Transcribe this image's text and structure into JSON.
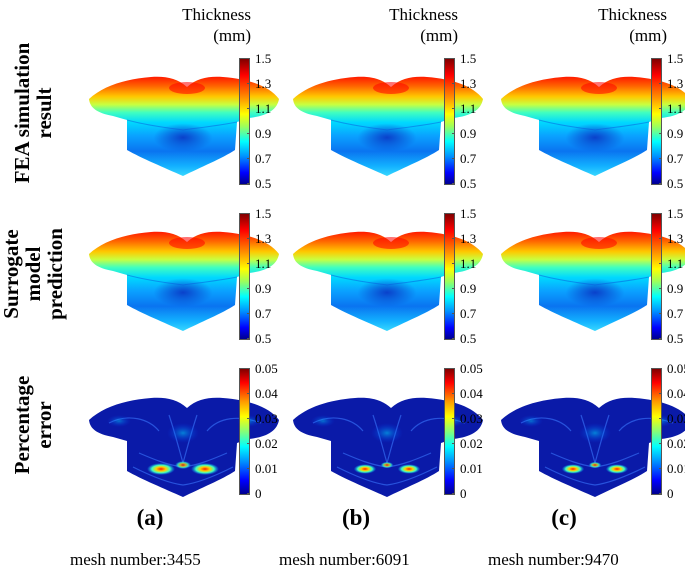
{
  "figure": {
    "unit_title_line1": "Thickness",
    "unit_title_line2": "(mm)",
    "row_labels": [
      {
        "line1": "FEA simulation",
        "line2": "result",
        "line3": ""
      },
      {
        "line1": "Surrogate",
        "line2": "model",
        "line3": "prediction"
      },
      {
        "line1": "Percentage",
        "line2": "error",
        "line3": ""
      }
    ],
    "thickness_colorbar": {
      "min": 0.5,
      "max": 1.5,
      "ticks": [
        "1.5",
        "1.3",
        "1.1",
        "0.9",
        "0.7",
        "0.5"
      ]
    },
    "error_colorbar": {
      "min": 0,
      "max": 0.05,
      "ticks": [
        "0.05",
        "0.04",
        "0.03",
        "0.02",
        "0.01",
        "0"
      ]
    },
    "columns": [
      {
        "label": "(a)",
        "mesh_text": "mesh number:3455"
      },
      {
        "label": "(b)",
        "mesh_text": "mesh number:6091"
      },
      {
        "label": "(c)",
        "mesh_text": "mesh number:9470"
      }
    ],
    "colors": {
      "thickness_high": "#ff0000",
      "thickness_low": "#0000ff",
      "error_background": "#0a1aa8"
    }
  }
}
